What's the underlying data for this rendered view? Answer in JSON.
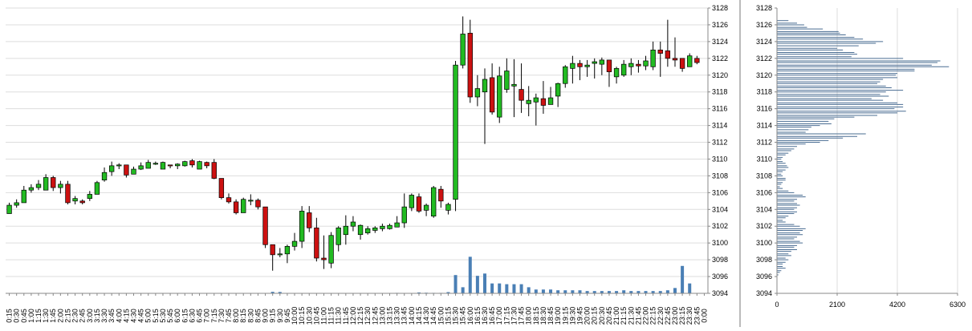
{
  "colors": {
    "up_candle": "#22bb22",
    "down_candle": "#cc1111",
    "wick": "#000000",
    "volume_bar": "#4a7fb5",
    "profile_bar": "#4a6d92",
    "grid": "#dddddd",
    "axis": "#888888"
  },
  "chart_data": [
    {
      "type": "candlestick",
      "y_axis": {
        "min": 3094,
        "max": 3128,
        "step": 2,
        "position": "right"
      },
      "grid": true,
      "x_tick_labels": [
        "0:15",
        "0:30",
        "0:45",
        "1:00",
        "1:15",
        "1:30",
        "1:45",
        "2:00",
        "2:15",
        "2:30",
        "2:45",
        "3:00",
        "3:15",
        "3:30",
        "3:45",
        "4:00",
        "4:15",
        "4:30",
        "4:45",
        "5:00",
        "5:15",
        "5:30",
        "5:45",
        "6:00",
        "6:15",
        "6:30",
        "6:45",
        "7:00",
        "7:15",
        "7:30",
        "7:45",
        "8:00",
        "8:15",
        "8:30",
        "8:45",
        "9:00",
        "9:15",
        "9:30",
        "9:45",
        "10:00",
        "10:15",
        "10:30",
        "10:45",
        "11:00",
        "11:15",
        "11:30",
        "11:45",
        "12:00",
        "12:15",
        "12:30",
        "12:45",
        "13:00",
        "13:15",
        "13:30",
        "13:45",
        "14:00",
        "14:15",
        "14:30",
        "14:45",
        "15:00",
        "15:15",
        "15:30",
        "15:45",
        "16:00",
        "16:15",
        "16:30",
        "16:45",
        "17:00",
        "17:15",
        "17:30",
        "17:45",
        "18:00",
        "18:15",
        "18:30",
        "18:45",
        "19:00",
        "19:15",
        "19:30",
        "19:45",
        "20:00",
        "20:15",
        "20:30",
        "20:45",
        "21:00",
        "21:15",
        "21:30",
        "21:45",
        "22:00",
        "22:15",
        "22:30",
        "22:45",
        "23:00",
        "23:15",
        "23:30",
        "23:45",
        "0:00"
      ],
      "candles": [
        [
          3103.5,
          3104.8,
          3103.5,
          3104.5
        ],
        [
          3104.5,
          3105.2,
          3104.2,
          3104.8
        ],
        [
          3104.8,
          3106.8,
          3104.8,
          3106.3
        ],
        [
          3106.3,
          3107.0,
          3106.0,
          3106.6
        ],
        [
          3106.6,
          3107.5,
          3106.3,
          3107.0
        ],
        [
          3106.3,
          3108.2,
          3106.3,
          3107.8
        ],
        [
          3107.8,
          3108.0,
          3106.2,
          3106.6
        ],
        [
          3106.6,
          3107.4,
          3105.9,
          3107.0
        ],
        [
          3107.0,
          3107.4,
          3104.6,
          3104.8
        ],
        [
          3105.0,
          3105.6,
          3104.6,
          3105.3
        ],
        [
          3105.0,
          3105.2,
          3104.6,
          3104.8
        ],
        [
          3105.3,
          3106.2,
          3105.0,
          3105.8
        ],
        [
          3105.8,
          3107.4,
          3105.8,
          3107.2
        ],
        [
          3107.5,
          3109.0,
          3107.3,
          3108.4
        ],
        [
          3108.5,
          3109.7,
          3108.0,
          3109.2
        ],
        [
          3109.2,
          3109.5,
          3108.8,
          3109.3
        ],
        [
          3109.3,
          3109.3,
          3107.8,
          3108.1
        ],
        [
          3108.2,
          3109.1,
          3108.2,
          3108.8
        ],
        [
          3108.8,
          3109.6,
          3108.7,
          3109.2
        ],
        [
          3108.9,
          3109.9,
          3108.9,
          3109.6
        ],
        [
          3109.4,
          3109.7,
          3109.3,
          3109.5
        ],
        [
          3108.8,
          3109.7,
          3108.8,
          3109.6
        ],
        [
          3109.3,
          3109.3,
          3108.9,
          3109.2
        ],
        [
          3109.2,
          3109.5,
          3108.8,
          3109.4
        ],
        [
          3109.2,
          3109.8,
          3109.1,
          3109.7
        ],
        [
          3109.8,
          3110.0,
          3109.0,
          3109.3
        ],
        [
          3108.8,
          3109.8,
          3108.8,
          3109.7
        ],
        [
          3109.6,
          3109.7,
          3108.9,
          3109.2
        ],
        [
          3109.6,
          3110.0,
          3107.6,
          3107.7
        ],
        [
          3107.7,
          3107.7,
          3105.2,
          3105.4
        ],
        [
          3105.4,
          3105.9,
          3104.7,
          3104.9
        ],
        [
          3104.9,
          3105.2,
          3103.4,
          3103.6
        ],
        [
          3103.6,
          3105.4,
          3103.6,
          3105.2
        ],
        [
          3105.0,
          3105.8,
          3104.5,
          3105.1
        ],
        [
          3105.1,
          3105.3,
          3104.0,
          3104.3
        ],
        [
          3104.3,
          3104.3,
          3099.4,
          3099.8
        ],
        [
          3099.8,
          3099.8,
          3096.7,
          3098.6
        ],
        [
          3098.6,
          3099.4,
          3098.3,
          3098.7
        ],
        [
          3098.7,
          3099.8,
          3097.6,
          3099.6
        ],
        [
          3099.6,
          3101.2,
          3099.1,
          3100.2
        ],
        [
          3100.2,
          3104.4,
          3099.4,
          3103.8
        ],
        [
          3103.6,
          3104.4,
          3101.3,
          3101.8
        ],
        [
          3101.8,
          3103.0,
          3097.8,
          3098.2
        ],
        [
          3098.2,
          3100.9,
          3096.9,
          3098.0
        ],
        [
          3097.6,
          3101.3,
          3097.0,
          3100.9
        ],
        [
          3099.8,
          3102.0,
          3099.0,
          3101.8
        ],
        [
          3101.0,
          3103.3,
          3099.8,
          3102.0
        ],
        [
          3102.0,
          3103.2,
          3101.4,
          3102.5
        ],
        [
          3101.0,
          3102.2,
          3100.4,
          3102.1
        ],
        [
          3101.2,
          3102.0,
          3101.0,
          3101.7
        ],
        [
          3101.5,
          3102.0,
          3101.2,
          3101.8
        ],
        [
          3101.7,
          3102.3,
          3101.4,
          3102.0
        ],
        [
          3101.7,
          3102.3,
          3101.6,
          3102.1
        ],
        [
          3101.9,
          3103.2,
          3101.9,
          3102.4
        ],
        [
          3102.4,
          3105.9,
          3101.8,
          3104.3
        ],
        [
          3104.2,
          3105.9,
          3103.8,
          3105.7
        ],
        [
          3105.5,
          3105.9,
          3103.6,
          3103.8
        ],
        [
          3103.9,
          3104.7,
          3103.2,
          3104.5
        ],
        [
          3103.2,
          3106.8,
          3103.0,
          3106.6
        ],
        [
          3106.4,
          3106.8,
          3104.2,
          3105.0
        ],
        [
          3103.9,
          3104.8,
          3103.4,
          3104.6
        ],
        [
          3105.2,
          3121.7,
          3103.8,
          3121.2
        ],
        [
          3121.2,
          3127.0,
          3120.8,
          3124.9
        ],
        [
          3125.0,
          3126.6,
          3116.7,
          3117.4
        ],
        [
          3117.4,
          3120.0,
          3116.3,
          3118.4
        ],
        [
          3118.0,
          3120.8,
          3111.8,
          3119.5
        ],
        [
          3119.7,
          3121.4,
          3115.3,
          3115.6
        ],
        [
          3115.0,
          3121.0,
          3114.3,
          3119.9
        ],
        [
          3118.3,
          3122.0,
          3117.9,
          3120.5
        ],
        [
          3118.7,
          3121.9,
          3115.0,
          3118.9
        ],
        [
          3118.3,
          3121.4,
          3115.5,
          3117.0
        ],
        [
          3116.6,
          3118.7,
          3115.1,
          3117.0
        ],
        [
          3116.8,
          3117.8,
          3114.0,
          3117.3
        ],
        [
          3117.2,
          3119.3,
          3115.4,
          3116.4
        ],
        [
          3116.5,
          3118.6,
          3116.5,
          3117.3
        ],
        [
          3117.5,
          3119.1,
          3116.2,
          3119.0
        ],
        [
          3119.0,
          3121.2,
          3118.5,
          3121.0
        ],
        [
          3120.8,
          3122.3,
          3119.0,
          3121.4
        ],
        [
          3121.4,
          3121.8,
          3119.4,
          3121.0
        ],
        [
          3121.0,
          3121.8,
          3119.8,
          3121.2
        ],
        [
          3121.4,
          3122.0,
          3119.6,
          3121.6
        ],
        [
          3121.3,
          3122.1,
          3120.0,
          3121.8
        ],
        [
          3121.8,
          3121.8,
          3118.6,
          3120.4
        ],
        [
          3119.8,
          3121.0,
          3119.0,
          3120.8
        ],
        [
          3120.0,
          3121.8,
          3119.8,
          3121.3
        ],
        [
          3121.0,
          3122.0,
          3120.0,
          3121.4
        ],
        [
          3121.3,
          3121.8,
          3120.3,
          3121.1
        ],
        [
          3121.1,
          3122.3,
          3120.6,
          3121.7
        ],
        [
          3121.0,
          3124.0,
          3120.6,
          3123.0
        ],
        [
          3123.0,
          3124.0,
          3119.8,
          3122.6
        ],
        [
          3122.9,
          3126.6,
          3121.0,
          3122.0
        ],
        [
          3122.0,
          3124.5,
          3121.0,
          3121.8
        ],
        [
          3122.0,
          3122.0,
          3120.4,
          3120.8
        ],
        [
          3121.0,
          3122.6,
          3121.0,
          3122.3
        ],
        [
          3122.0,
          3122.3,
          3121.3,
          3121.5
        ]
      ],
      "volume": [
        0,
        0,
        0,
        0,
        0,
        0,
        0,
        0,
        0,
        0,
        0,
        0,
        0,
        0,
        0,
        0,
        0,
        0,
        0,
        0,
        0,
        0,
        0,
        0,
        0,
        0,
        0,
        0,
        0,
        0,
        0,
        0,
        0,
        0,
        0,
        0,
        0.2,
        0.18,
        0,
        0,
        0,
        0,
        0,
        0,
        0,
        0,
        0,
        0,
        0,
        0,
        0,
        0,
        0,
        0.06,
        0.05,
        0.05,
        0.12,
        0.08,
        0.06,
        0.06,
        0.16,
        2.4,
        0.8,
        4.8,
        2.3,
        2.6,
        1.3,
        1.3,
        1.2,
        1.2,
        1.2,
        0.8,
        0.5,
        0.5,
        0.5,
        0.4,
        0.4,
        0.4,
        0.4,
        0.3,
        0.3,
        0.3,
        0.3,
        0.3,
        0.4,
        0.3,
        0.3,
        0.3,
        0.3,
        0.3,
        0.4,
        0.7,
        3.6,
        1.3,
        0,
        0
      ]
    },
    {
      "type": "bar",
      "orientation": "horizontal",
      "x_axis": {
        "min": 0,
        "max": 6300,
        "ticks": [
          0,
          2100,
          4200,
          6300
        ]
      },
      "y_axis": {
        "min": 3094,
        "max": 3128,
        "step": 2,
        "position": "left"
      },
      "profile": [
        [
          3126.5,
          400
        ],
        [
          3126.2,
          700
        ],
        [
          3126.0,
          950
        ],
        [
          3125.7,
          1050
        ],
        [
          3125.5,
          1600
        ],
        [
          3125.2,
          2150
        ],
        [
          3125.0,
          2200
        ],
        [
          3124.8,
          2400
        ],
        [
          3124.5,
          2700
        ],
        [
          3124.3,
          3000
        ],
        [
          3124.0,
          3700
        ],
        [
          3123.8,
          3450
        ],
        [
          3123.5,
          2850
        ],
        [
          3123.2,
          2100
        ],
        [
          3123.0,
          2300
        ],
        [
          3122.7,
          2700
        ],
        [
          3122.5,
          2800
        ],
        [
          3122.2,
          2600
        ],
        [
          3122.0,
          4400
        ],
        [
          3121.7,
          5700
        ],
        [
          3121.5,
          5600
        ],
        [
          3121.2,
          5400
        ],
        [
          3121.0,
          6000
        ],
        [
          3120.7,
          4800
        ],
        [
          3120.5,
          4800
        ],
        [
          3120.2,
          4200
        ],
        [
          3120.0,
          4150
        ],
        [
          3119.7,
          4200
        ],
        [
          3119.5,
          3700
        ],
        [
          3119.2,
          3600
        ],
        [
          3119.0,
          3500
        ],
        [
          3118.7,
          3800
        ],
        [
          3118.5,
          4000
        ],
        [
          3118.2,
          4400
        ],
        [
          3118.0,
          3800
        ],
        [
          3117.7,
          3600
        ],
        [
          3117.5,
          3900
        ],
        [
          3117.2,
          3300
        ],
        [
          3117.0,
          3700
        ],
        [
          3116.7,
          4200
        ],
        [
          3116.5,
          4400
        ],
        [
          3116.2,
          4400
        ],
        [
          3116.0,
          4100
        ],
        [
          3115.7,
          4500
        ],
        [
          3115.5,
          4200
        ],
        [
          3115.2,
          3500
        ],
        [
          3115.0,
          2700
        ],
        [
          3114.8,
          2000
        ],
        [
          3114.5,
          1800
        ],
        [
          3114.2,
          1900
        ],
        [
          3114.0,
          1500
        ],
        [
          3113.8,
          1200
        ],
        [
          3113.5,
          1100
        ],
        [
          3113.2,
          1000
        ],
        [
          3113.0,
          3100
        ],
        [
          3112.7,
          2800
        ],
        [
          3112.5,
          2300
        ],
        [
          3112.2,
          1800
        ],
        [
          3112.0,
          1500
        ],
        [
          3111.8,
          1000
        ],
        [
          3111.5,
          700
        ],
        [
          3111.2,
          600
        ],
        [
          3111.0,
          500
        ],
        [
          3110.7,
          400
        ],
        [
          3110.5,
          300
        ],
        [
          3110.2,
          200
        ],
        [
          3110.0,
          150
        ],
        [
          3109.7,
          200
        ],
        [
          3109.5,
          300
        ],
        [
          3109.2,
          350
        ],
        [
          3109.0,
          400
        ],
        [
          3108.7,
          300
        ],
        [
          3108.5,
          200
        ],
        [
          3108.2,
          150
        ],
        [
          3108.0,
          200
        ],
        [
          3107.7,
          300
        ],
        [
          3107.5,
          300
        ],
        [
          3107.2,
          200
        ],
        [
          3107.0,
          150
        ],
        [
          3106.7,
          100
        ],
        [
          3106.5,
          200
        ],
        [
          3106.2,
          400
        ],
        [
          3106.0,
          600
        ],
        [
          3105.7,
          900
        ],
        [
          3105.5,
          1000
        ],
        [
          3105.2,
          700
        ],
        [
          3105.0,
          600
        ],
        [
          3104.7,
          700
        ],
        [
          3104.5,
          800
        ],
        [
          3104.2,
          700
        ],
        [
          3104.0,
          600
        ],
        [
          3103.7,
          700
        ],
        [
          3103.5,
          600
        ],
        [
          3103.2,
          400
        ],
        [
          3103.0,
          300
        ],
        [
          3102.7,
          200
        ],
        [
          3102.5,
          300
        ],
        [
          3102.2,
          600
        ],
        [
          3102.0,
          800
        ],
        [
          3101.7,
          1000
        ],
        [
          3101.5,
          900
        ],
        [
          3101.2,
          800
        ],
        [
          3101.0,
          900
        ],
        [
          3100.7,
          700
        ],
        [
          3100.5,
          600
        ],
        [
          3100.2,
          800
        ],
        [
          3100.0,
          900
        ],
        [
          3099.7,
          700
        ],
        [
          3099.5,
          600
        ],
        [
          3099.2,
          700
        ],
        [
          3099.0,
          500
        ],
        [
          3098.7,
          400
        ],
        [
          3098.5,
          500
        ],
        [
          3098.2,
          300
        ],
        [
          3098.0,
          400
        ],
        [
          3097.7,
          300
        ],
        [
          3097.5,
          200
        ],
        [
          3097.2,
          200
        ],
        [
          3097.0,
          300
        ],
        [
          3096.7,
          150
        ],
        [
          3096.5,
          100
        ],
        [
          3096.2,
          50
        ]
      ]
    }
  ]
}
